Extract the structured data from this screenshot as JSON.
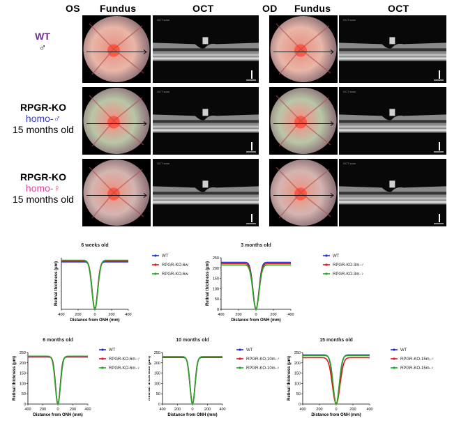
{
  "headers": {
    "os": "OS",
    "od": "OD",
    "fundus_left": "Fundus",
    "oct_left": "OCT",
    "fundus_right": "Fundus",
    "oct_right": "OCT"
  },
  "rows": [
    {
      "title": "WT",
      "sex": "♂",
      "age": "",
      "title_color": "#6a2c91",
      "sex_color": "#000000"
    },
    {
      "title": "RPGR-KO",
      "sex": "homo-♂",
      "age": "15 months old",
      "title_color": "#000000",
      "sex_color": "#3a3ac8"
    },
    {
      "title": "RPGR-KO",
      "sex": "homo-♀",
      "age": "15 months old",
      "title_color": "#000000",
      "sex_color": "#e0479c"
    }
  ],
  "chart_data": [
    {
      "type": "line",
      "title": "6 weeks old",
      "xlabel": "Distance from ONH (mm)",
      "ylabel": "Retinal thickness (μm)",
      "xlim": [
        -400,
        400
      ],
      "ylim": [
        0,
        250
      ],
      "xticks": [
        "400",
        "200",
        "0",
        "200",
        "400"
      ],
      "yticks": [
        "0",
        "50",
        "100",
        "150",
        "200",
        "250"
      ],
      "yticks_shown": false,
      "legend": [
        "WT",
        "RPGR-KO-6w-♂",
        "RPGR-KO-6w-♀"
      ],
      "series": [
        {
          "name": "WT",
          "color": "#1f2fd0",
          "plateau": 230,
          "halfwidth": 60
        },
        {
          "name": "RPGR-KO-6w-♂",
          "color": "#e01818",
          "plateau": 235,
          "halfwidth": 62
        },
        {
          "name": "RPGR-KO-6w-♀",
          "color": "#22a822",
          "plateau": 238,
          "halfwidth": 66
        }
      ]
    },
    {
      "type": "line",
      "title": "3 months old",
      "xlabel": "Distance from ONH (mm)",
      "ylabel": "Retinal thickness (μm)",
      "xlim": [
        -400,
        400
      ],
      "ylim": [
        0,
        250
      ],
      "xticks": [
        "400",
        "200",
        "0",
        "200",
        "400"
      ],
      "yticks": [
        "0",
        "50",
        "100",
        "150",
        "200",
        "250"
      ],
      "yticks_shown": true,
      "legend": [
        "WT",
        "RPGR-KO-3m-♂",
        "RPGR-KO-3m-♀"
      ],
      "series": [
        {
          "name": "WT",
          "color": "#1f2fd0",
          "plateau": 228,
          "halfwidth": 62
        },
        {
          "name": "RPGR-KO-3m-♂",
          "color": "#e01818",
          "plateau": 222,
          "halfwidth": 64
        },
        {
          "name": "RPGR-KO-3m-♀",
          "color": "#22a822",
          "plateau": 215,
          "halfwidth": 66
        }
      ]
    },
    {
      "type": "line",
      "title": "6 months old",
      "xlabel": "Distance from ONH (mm)",
      "ylabel": "Retinal thickness (μm)",
      "xlim": [
        -400,
        400
      ],
      "ylim": [
        0,
        250
      ],
      "xticks": [
        "400",
        "200",
        "0",
        "200",
        "400"
      ],
      "yticks": [
        "0",
        "50",
        "100",
        "150",
        "200",
        "250"
      ],
      "yticks_shown": true,
      "legend": [
        "WT",
        "RPGR-KO-6m-♂",
        "RPGR-KO-6m-♀"
      ],
      "series": [
        {
          "name": "WT",
          "color": "#1f2fd0",
          "plateau": 228,
          "halfwidth": 58
        },
        {
          "name": "RPGR-KO-6m-♂",
          "color": "#e01818",
          "plateau": 230,
          "halfwidth": 60
        },
        {
          "name": "RPGR-KO-6m-♀",
          "color": "#22a822",
          "plateau": 232,
          "halfwidth": 64
        }
      ]
    },
    {
      "type": "line",
      "title": "10 months old",
      "xlabel": "Distance from ONH (mm)",
      "ylabel": "Retinal thickness (μm)",
      "xlim": [
        -400,
        400
      ],
      "ylim": [
        0,
        250
      ],
      "xticks": [
        "400",
        "200",
        "0",
        "200",
        "400"
      ],
      "yticks": [
        "0",
        "50",
        "100",
        "150",
        "200",
        "250"
      ],
      "yticks_shown": true,
      "legend": [
        "WT",
        "RPGR-KO-10m-♂",
        "RPGR-KO-10m-♀"
      ],
      "series": [
        {
          "name": "WT",
          "color": "#1f2fd0",
          "plateau": 226,
          "halfwidth": 60
        },
        {
          "name": "RPGR-KO-10m-♂",
          "color": "#e01818",
          "plateau": 228,
          "halfwidth": 62
        },
        {
          "name": "RPGR-KO-10m-♀",
          "color": "#22a822",
          "plateau": 230,
          "halfwidth": 64
        }
      ]
    },
    {
      "type": "line",
      "title": "15 months old",
      "xlabel": "Distance from ONH (mm)",
      "ylabel": "Retinal thickness (μm)",
      "xlim": [
        -400,
        400
      ],
      "ylim": [
        0,
        250
      ],
      "xticks": [
        "400",
        "200",
        "0",
        "200",
        "400"
      ],
      "yticks": [
        "0",
        "50",
        "100",
        "150",
        "200",
        "250"
      ],
      "yticks_shown": true,
      "legend": [
        "WT",
        "RPGR-KO-15m-♂",
        "RPGR-KO-15m-♀"
      ],
      "series": [
        {
          "name": "WT",
          "color": "#1f2fd0",
          "plateau": 238,
          "halfwidth": 70
        },
        {
          "name": "RPGR-KO-15m-♂",
          "color": "#e01818",
          "plateau": 225,
          "halfwidth": 82
        },
        {
          "name": "RPGR-KO-15m-♀",
          "color": "#22a822",
          "plateau": 235,
          "halfwidth": 66
        }
      ]
    }
  ]
}
